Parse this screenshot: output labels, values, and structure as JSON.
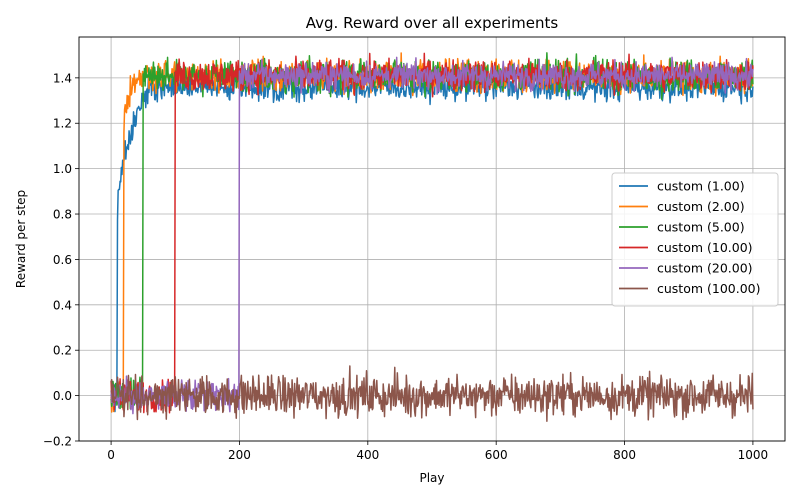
{
  "chart_data": {
    "type": "line",
    "title": "Avg. Reward over all experiments",
    "xlabel": "Play",
    "ylabel": "Reward per step",
    "xlim": [
      -50,
      1050
    ],
    "ylim": [
      -0.2,
      1.58
    ],
    "xticks": [
      0,
      200,
      400,
      600,
      800,
      1000
    ],
    "yticks": [
      -0.2,
      0.0,
      0.2,
      0.4,
      0.6,
      0.8,
      1.0,
      1.2,
      1.4
    ],
    "xtick_labels": [
      "0",
      "200",
      "400",
      "600",
      "800",
      "1000"
    ],
    "ytick_labels": [
      "−0.2",
      "0.0",
      "0.2",
      "0.4",
      "0.6",
      "0.8",
      "1.0",
      "1.2",
      "1.4"
    ],
    "grid": true,
    "legend_position": "center-right",
    "series": [
      {
        "name": "custom (1.00)",
        "color": "#1f77b4",
        "switch_at": 10,
        "initial_mean": 0.0,
        "final_mean": 1.36,
        "noise_before": 0.035,
        "noise_after": 0.03,
        "ramp_end": 60,
        "ramp_start_value": 0.8
      },
      {
        "name": "custom (2.00)",
        "color": "#ff7f0e",
        "switch_at": 20,
        "initial_mean": 0.0,
        "final_mean": 1.41,
        "noise_before": 0.035,
        "noise_after": 0.035,
        "ramp_end": 45,
        "ramp_start_value": 1.2
      },
      {
        "name": "custom (5.00)",
        "color": "#2ca02c",
        "switch_at": 50,
        "initial_mean": 0.0,
        "final_mean": 1.41,
        "noise_before": 0.035,
        "noise_after": 0.035,
        "ramp_end": 0,
        "ramp_start_value": 1.41
      },
      {
        "name": "custom (10.00)",
        "color": "#d62728",
        "switch_at": 100,
        "initial_mean": 0.0,
        "final_mean": 1.41,
        "noise_before": 0.035,
        "noise_after": 0.035,
        "ramp_end": 0,
        "ramp_start_value": 1.41
      },
      {
        "name": "custom (20.00)",
        "color": "#9467bd",
        "switch_at": 200,
        "initial_mean": 0.0,
        "final_mean": 1.41,
        "noise_before": 0.035,
        "noise_after": 0.03,
        "ramp_end": 0,
        "ramp_start_value": 1.41
      },
      {
        "name": "custom (100.00)",
        "color": "#8c564b",
        "switch_at": 1001,
        "initial_mean": 0.0,
        "final_mean": 0.0,
        "noise_before": 0.045,
        "noise_after": 0.045,
        "ramp_end": 0,
        "ramp_start_value": 0.0
      }
    ],
    "n_points": 1000
  }
}
